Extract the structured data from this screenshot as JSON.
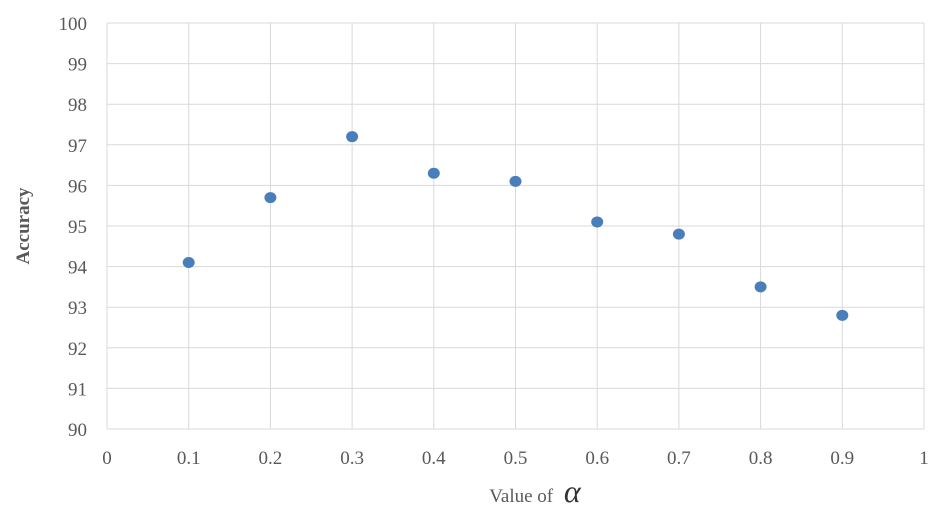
{
  "chart_data": {
    "type": "scatter",
    "title": "",
    "xlabel": "Value of",
    "xlabel_symbol": "α",
    "ylabel": "Accuracy",
    "xlim": [
      0,
      1
    ],
    "ylim": [
      90,
      100
    ],
    "x_ticks": [
      "0",
      "0.1",
      "0.2",
      "0.3",
      "0.4",
      "0.5",
      "0.6",
      "0.7",
      "0.8",
      "0.9",
      "1"
    ],
    "y_ticks": [
      "90",
      "91",
      "92",
      "93",
      "94",
      "95",
      "96",
      "97",
      "98",
      "99",
      "100"
    ],
    "grid": true,
    "legend": "none",
    "marker_color": "#4a7ebb",
    "series": [
      {
        "x": [
          0.1,
          0.2,
          0.3,
          0.4,
          0.5,
          0.6,
          0.7,
          0.8,
          0.9
        ],
        "y": [
          94.1,
          95.7,
          97.2,
          96.3,
          96.1,
          95.1,
          94.8,
          93.5,
          92.8
        ]
      }
    ]
  }
}
